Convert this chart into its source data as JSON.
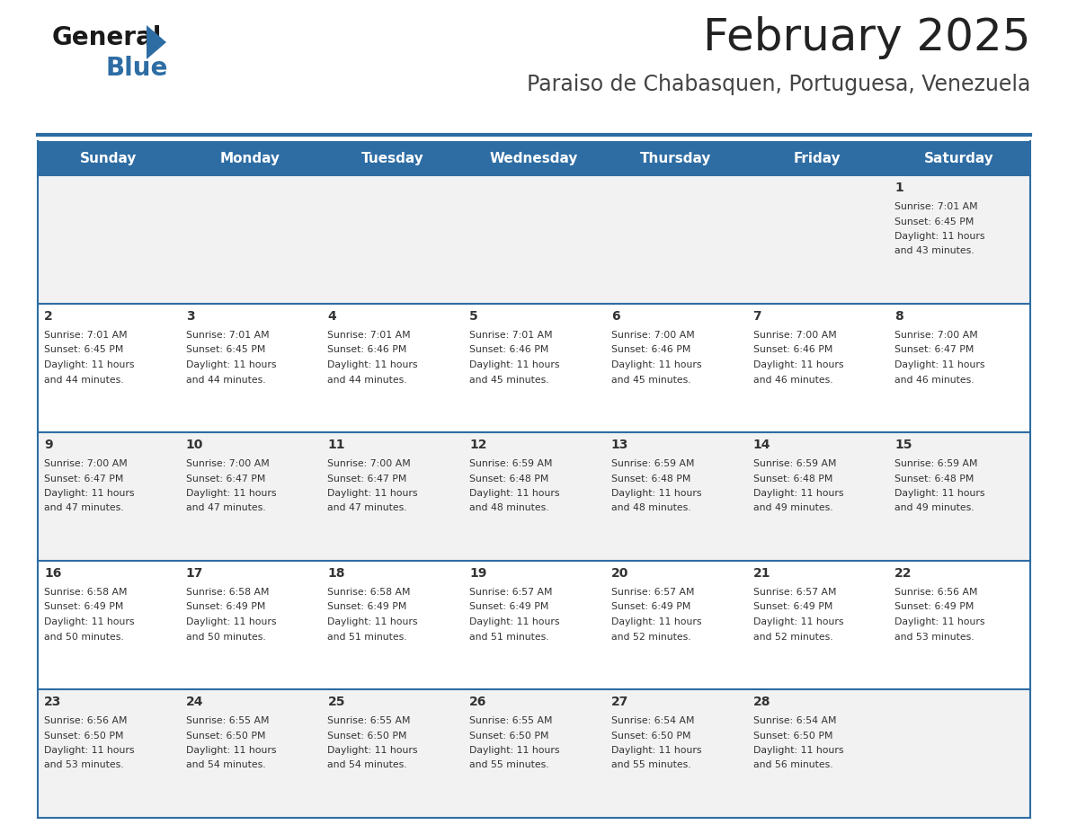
{
  "title": "February 2025",
  "subtitle": "Paraiso de Chabasquen, Portuguesa, Venezuela",
  "days_of_week": [
    "Sunday",
    "Monday",
    "Tuesday",
    "Wednesday",
    "Thursday",
    "Friday",
    "Saturday"
  ],
  "header_bg": "#2E6DA4",
  "header_text": "#FFFFFF",
  "cell_bg_odd": "#F2F2F2",
  "cell_bg_even": "#FFFFFF",
  "cell_text": "#333333",
  "border_color": "#2E6DA4",
  "title_color": "#222222",
  "subtitle_color": "#444444",
  "logo_general_color": "#1a1a1a",
  "logo_blue_color": "#2E6DA4",
  "weeks": [
    [
      {
        "day": "",
        "sunrise": "",
        "sunset": "",
        "daylight": ""
      },
      {
        "day": "",
        "sunrise": "",
        "sunset": "",
        "daylight": ""
      },
      {
        "day": "",
        "sunrise": "",
        "sunset": "",
        "daylight": ""
      },
      {
        "day": "",
        "sunrise": "",
        "sunset": "",
        "daylight": ""
      },
      {
        "day": "",
        "sunrise": "",
        "sunset": "",
        "daylight": ""
      },
      {
        "day": "",
        "sunrise": "",
        "sunset": "",
        "daylight": ""
      },
      {
        "day": "1",
        "sunrise": "7:01 AM",
        "sunset": "6:45 PM",
        "daylight": "11 hours\nand 43 minutes."
      }
    ],
    [
      {
        "day": "2",
        "sunrise": "7:01 AM",
        "sunset": "6:45 PM",
        "daylight": "11 hours\nand 44 minutes."
      },
      {
        "day": "3",
        "sunrise": "7:01 AM",
        "sunset": "6:45 PM",
        "daylight": "11 hours\nand 44 minutes."
      },
      {
        "day": "4",
        "sunrise": "7:01 AM",
        "sunset": "6:46 PM",
        "daylight": "11 hours\nand 44 minutes."
      },
      {
        "day": "5",
        "sunrise": "7:01 AM",
        "sunset": "6:46 PM",
        "daylight": "11 hours\nand 45 minutes."
      },
      {
        "day": "6",
        "sunrise": "7:00 AM",
        "sunset": "6:46 PM",
        "daylight": "11 hours\nand 45 minutes."
      },
      {
        "day": "7",
        "sunrise": "7:00 AM",
        "sunset": "6:46 PM",
        "daylight": "11 hours\nand 46 minutes."
      },
      {
        "day": "8",
        "sunrise": "7:00 AM",
        "sunset": "6:47 PM",
        "daylight": "11 hours\nand 46 minutes."
      }
    ],
    [
      {
        "day": "9",
        "sunrise": "7:00 AM",
        "sunset": "6:47 PM",
        "daylight": "11 hours\nand 47 minutes."
      },
      {
        "day": "10",
        "sunrise": "7:00 AM",
        "sunset": "6:47 PM",
        "daylight": "11 hours\nand 47 minutes."
      },
      {
        "day": "11",
        "sunrise": "7:00 AM",
        "sunset": "6:47 PM",
        "daylight": "11 hours\nand 47 minutes."
      },
      {
        "day": "12",
        "sunrise": "6:59 AM",
        "sunset": "6:48 PM",
        "daylight": "11 hours\nand 48 minutes."
      },
      {
        "day": "13",
        "sunrise": "6:59 AM",
        "sunset": "6:48 PM",
        "daylight": "11 hours\nand 48 minutes."
      },
      {
        "day": "14",
        "sunrise": "6:59 AM",
        "sunset": "6:48 PM",
        "daylight": "11 hours\nand 49 minutes."
      },
      {
        "day": "15",
        "sunrise": "6:59 AM",
        "sunset": "6:48 PM",
        "daylight": "11 hours\nand 49 minutes."
      }
    ],
    [
      {
        "day": "16",
        "sunrise": "6:58 AM",
        "sunset": "6:49 PM",
        "daylight": "11 hours\nand 50 minutes."
      },
      {
        "day": "17",
        "sunrise": "6:58 AM",
        "sunset": "6:49 PM",
        "daylight": "11 hours\nand 50 minutes."
      },
      {
        "day": "18",
        "sunrise": "6:58 AM",
        "sunset": "6:49 PM",
        "daylight": "11 hours\nand 51 minutes."
      },
      {
        "day": "19",
        "sunrise": "6:57 AM",
        "sunset": "6:49 PM",
        "daylight": "11 hours\nand 51 minutes."
      },
      {
        "day": "20",
        "sunrise": "6:57 AM",
        "sunset": "6:49 PM",
        "daylight": "11 hours\nand 52 minutes."
      },
      {
        "day": "21",
        "sunrise": "6:57 AM",
        "sunset": "6:49 PM",
        "daylight": "11 hours\nand 52 minutes."
      },
      {
        "day": "22",
        "sunrise": "6:56 AM",
        "sunset": "6:49 PM",
        "daylight": "11 hours\nand 53 minutes."
      }
    ],
    [
      {
        "day": "23",
        "sunrise": "6:56 AM",
        "sunset": "6:50 PM",
        "daylight": "11 hours\nand 53 minutes."
      },
      {
        "day": "24",
        "sunrise": "6:55 AM",
        "sunset": "6:50 PM",
        "daylight": "11 hours\nand 54 minutes."
      },
      {
        "day": "25",
        "sunrise": "6:55 AM",
        "sunset": "6:50 PM",
        "daylight": "11 hours\nand 54 minutes."
      },
      {
        "day": "26",
        "sunrise": "6:55 AM",
        "sunset": "6:50 PM",
        "daylight": "11 hours\nand 55 minutes."
      },
      {
        "day": "27",
        "sunrise": "6:54 AM",
        "sunset": "6:50 PM",
        "daylight": "11 hours\nand 55 minutes."
      },
      {
        "day": "28",
        "sunrise": "6:54 AM",
        "sunset": "6:50 PM",
        "daylight": "11 hours\nand 56 minutes."
      },
      {
        "day": "",
        "sunrise": "",
        "sunset": "",
        "daylight": ""
      }
    ]
  ]
}
